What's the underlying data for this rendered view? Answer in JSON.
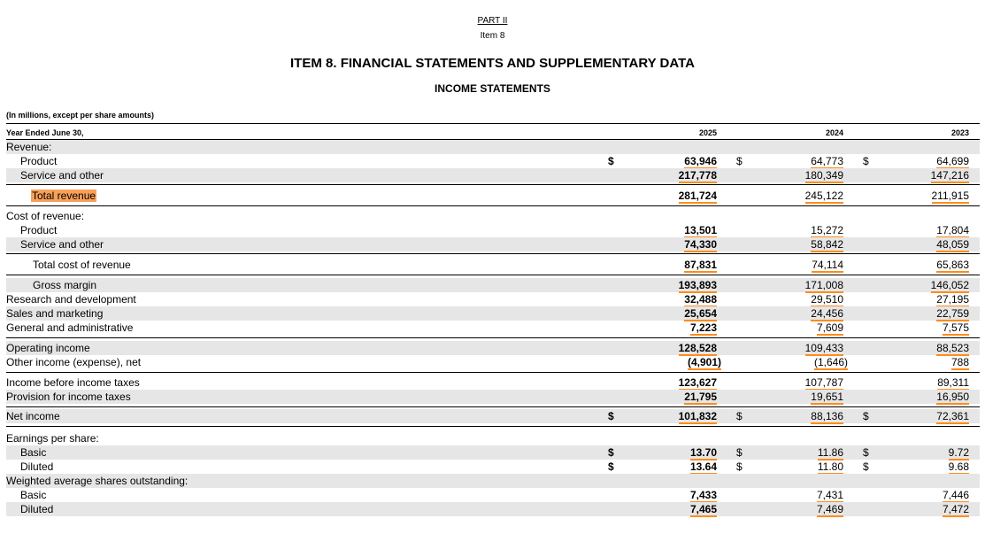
{
  "header": {
    "part": "PART II",
    "item": "Item 8",
    "title": "ITEM 8. FINANCIAL STATEMENTS AND SUPPLEMENTARY DATA",
    "subtitle": "INCOME STATEMENTS",
    "units": "(In millions, except per share amounts)"
  },
  "columns": {
    "year_label": "Year Ended June 30,",
    "years": [
      "2025",
      "2024",
      "2023"
    ]
  },
  "rows": [
    {
      "label": "Revenue:",
      "values": [
        "",
        "",
        ""
      ]
    },
    {
      "label": "Product",
      "values": [
        "63,946",
        "64,773",
        "64,699"
      ],
      "dollar": true
    },
    {
      "label": "Service and other",
      "values": [
        "217,778",
        "180,349",
        "147,216"
      ]
    },
    {
      "label": "Total revenue",
      "values": [
        "281,724",
        "245,122",
        "211,915"
      ]
    },
    {
      "label": "Cost of revenue:",
      "values": [
        "",
        "",
        ""
      ]
    },
    {
      "label": "Product",
      "values": [
        "13,501",
        "15,272",
        "17,804"
      ]
    },
    {
      "label": "Service and other",
      "values": [
        "74,330",
        "58,842",
        "48,059"
      ]
    },
    {
      "label": "Total cost of revenue",
      "values": [
        "87,831",
        "74,114",
        "65,863"
      ]
    },
    {
      "label": "Gross margin",
      "values": [
        "193,893",
        "171,008",
        "146,052"
      ]
    },
    {
      "label": "Research and development",
      "values": [
        "32,488",
        "29,510",
        "27,195"
      ]
    },
    {
      "label": "Sales and marketing",
      "values": [
        "25,654",
        "24,456",
        "22,759"
      ]
    },
    {
      "label": "General and administrative",
      "values": [
        "7,223",
        "7,609",
        "7,575"
      ]
    },
    {
      "label": "Operating income",
      "values": [
        "128,528",
        "109,433",
        "88,523"
      ]
    },
    {
      "label": "Other income (expense), net",
      "values": [
        "(4,901)",
        "(1,646)",
        "788"
      ]
    },
    {
      "label": "Income before income taxes",
      "values": [
        "123,627",
        "107,787",
        "89,311"
      ]
    },
    {
      "label": "Provision for income taxes",
      "values": [
        "21,795",
        "19,651",
        "16,950"
      ]
    },
    {
      "label": "Net income",
      "values": [
        "101,832",
        "88,136",
        "72,361"
      ],
      "dollar": true
    },
    {
      "label": "Earnings per share:",
      "values": [
        "",
        "",
        ""
      ]
    },
    {
      "label": "Basic",
      "values": [
        "13.70",
        "11.86",
        "9.72"
      ],
      "dollar": true
    },
    {
      "label": "Diluted",
      "values": [
        "13.64",
        "11.80",
        "9.68"
      ],
      "dollar": true
    },
    {
      "label": "Weighted average shares outstanding:",
      "values": [
        "",
        "",
        ""
      ]
    },
    {
      "label": "Basic",
      "values": [
        "7,433",
        "7,431",
        "7,446"
      ]
    },
    {
      "label": "Diluted",
      "values": [
        "7,465",
        "7,469",
        "7,472"
      ]
    }
  ],
  "currency_symbol": "$",
  "colors": {
    "accent_underline": "#ff8c1a",
    "highlight": "#f7a05a",
    "row_shade": "#e6e6e6"
  }
}
